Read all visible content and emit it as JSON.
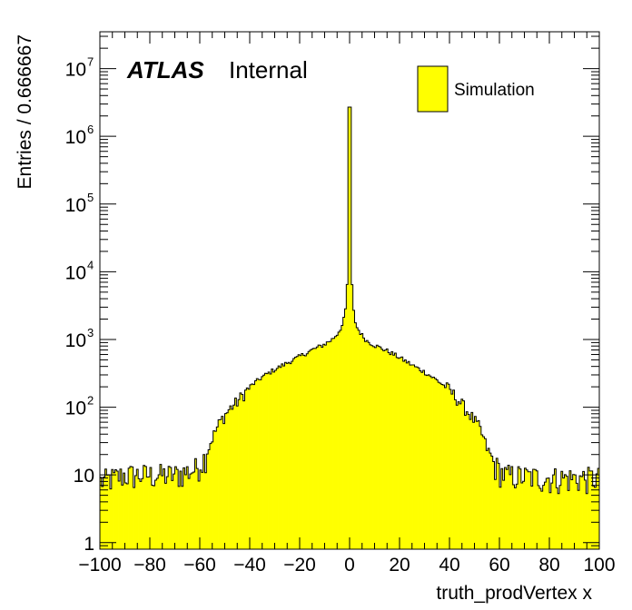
{
  "chart_data": {
    "type": "histogram",
    "scale_y": "log",
    "xlim": [
      -100,
      100
    ],
    "ylim": [
      0.8,
      35000000
    ],
    "xlabel": "truth_prodVertex x",
    "ylabel": "Entries / 0.666667",
    "bin_width": 0.666667,
    "fill_color": "#ffff00",
    "line_color": "#000000",
    "atlas_label": "ATLAS",
    "atlas_sublabel": "Internal",
    "legend": [
      {
        "label": "Simulation",
        "color": "#ffff00"
      }
    ],
    "x_ticks": [
      {
        "value": -100,
        "label": "−100"
      },
      {
        "value": -80,
        "label": "−80"
      },
      {
        "value": -60,
        "label": "−60"
      },
      {
        "value": -40,
        "label": "−40"
      },
      {
        "value": -20,
        "label": "−20"
      },
      {
        "value": 0,
        "label": "0"
      },
      {
        "value": 20,
        "label": "20"
      },
      {
        "value": 40,
        "label": "40"
      },
      {
        "value": 60,
        "label": "60"
      },
      {
        "value": 80,
        "label": "80"
      },
      {
        "value": 100,
        "label": "100"
      }
    ],
    "y_ticks": [
      {
        "value": 1,
        "base": "1",
        "exp": ""
      },
      {
        "value": 10,
        "base": "10",
        "exp": ""
      },
      {
        "value": 100,
        "base": "10",
        "exp": "2"
      },
      {
        "value": 1000,
        "base": "10",
        "exp": "3"
      },
      {
        "value": 10000,
        "base": "10",
        "exp": "4"
      },
      {
        "value": 100000,
        "base": "10",
        "exp": "5"
      },
      {
        "value": 1000000,
        "base": "10",
        "exp": "6"
      },
      {
        "value": 10000000,
        "base": "10",
        "exp": "7"
      }
    ],
    "profile": [
      {
        "x": -100,
        "y": 8
      },
      {
        "x": -90,
        "y": 10
      },
      {
        "x": -70,
        "y": 10
      },
      {
        "x": -62,
        "y": 12
      },
      {
        "x": -58,
        "y": 18
      },
      {
        "x": -55,
        "y": 35
      },
      {
        "x": -52,
        "y": 60
      },
      {
        "x": -48,
        "y": 95
      },
      {
        "x": -45,
        "y": 120
      },
      {
        "x": -40,
        "y": 200
      },
      {
        "x": -35,
        "y": 280
      },
      {
        "x": -30,
        "y": 360
      },
      {
        "x": -25,
        "y": 450
      },
      {
        "x": -20,
        "y": 560
      },
      {
        "x": -15,
        "y": 700
      },
      {
        "x": -10,
        "y": 850
      },
      {
        "x": -7,
        "y": 1000
      },
      {
        "x": -5,
        "y": 1200
      },
      {
        "x": -3,
        "y": 1600
      },
      {
        "x": -2,
        "y": 2200
      },
      {
        "x": -1.3,
        "y": 3500
      },
      {
        "x": -0.7,
        "y": 12000
      },
      {
        "x": 0,
        "y": 2700000
      },
      {
        "x": 0.7,
        "y": 11000
      },
      {
        "x": 1.3,
        "y": 3400
      },
      {
        "x": 2,
        "y": 2000
      },
      {
        "x": 3,
        "y": 1500
      },
      {
        "x": 5,
        "y": 1150
      },
      {
        "x": 7,
        "y": 950
      },
      {
        "x": 10,
        "y": 820
      },
      {
        "x": 15,
        "y": 680
      },
      {
        "x": 20,
        "y": 540
      },
      {
        "x": 25,
        "y": 420
      },
      {
        "x": 30,
        "y": 330
      },
      {
        "x": 35,
        "y": 250
      },
      {
        "x": 40,
        "y": 180
      },
      {
        "x": 45,
        "y": 110
      },
      {
        "x": 48,
        "y": 80
      },
      {
        "x": 52,
        "y": 50
      },
      {
        "x": 55,
        "y": 25
      },
      {
        "x": 58,
        "y": 14
      },
      {
        "x": 62,
        "y": 10
      },
      {
        "x": 80,
        "y": 9
      },
      {
        "x": 100,
        "y": 9
      }
    ]
  }
}
